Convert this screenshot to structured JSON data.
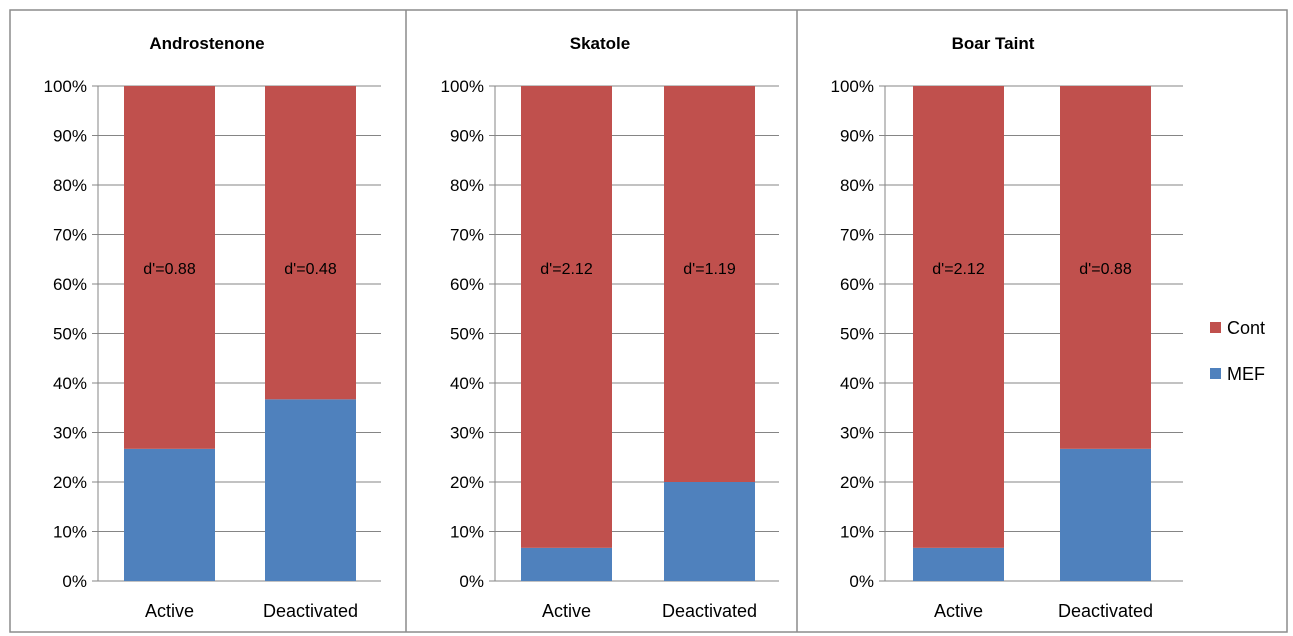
{
  "legend": [
    {
      "label": "Cont",
      "color": "#C0504D"
    },
    {
      "label": "MEF",
      "color": "#4F81BD"
    }
  ],
  "y_ticks": [
    "0%",
    "10%",
    "20%",
    "30%",
    "40%",
    "50%",
    "60%",
    "70%",
    "80%",
    "90%",
    "100%"
  ],
  "chart_data": [
    {
      "type": "bar",
      "stacked": "percent",
      "title": "Androstenone",
      "categories": [
        "Active",
        "Deactivated"
      ],
      "series": [
        {
          "name": "MEF",
          "values": [
            26.7,
            36.7
          ],
          "color": "#4F81BD"
        },
        {
          "name": "Cont",
          "values": [
            73.3,
            63.3
          ],
          "color": "#C0504D"
        }
      ],
      "annotations": [
        "d'=0.88",
        "d'=0.48"
      ],
      "ylim": [
        0,
        100
      ],
      "grid": true,
      "legend_position": "right"
    },
    {
      "type": "bar",
      "stacked": "percent",
      "title": "Skatole",
      "categories": [
        "Active",
        "Deactivated"
      ],
      "series": [
        {
          "name": "MEF",
          "values": [
            6.7,
            20.0
          ],
          "color": "#4F81BD"
        },
        {
          "name": "Cont",
          "values": [
            93.3,
            80.0
          ],
          "color": "#C0504D"
        }
      ],
      "annotations": [
        "d'=2.12",
        "d'=1.19"
      ],
      "ylim": [
        0,
        100
      ],
      "grid": true,
      "legend_position": "right"
    },
    {
      "type": "bar",
      "stacked": "percent",
      "title": "Boar Taint",
      "categories": [
        "Active",
        "Deactivated"
      ],
      "series": [
        {
          "name": "MEF",
          "values": [
            6.7,
            26.7
          ],
          "color": "#4F81BD"
        },
        {
          "name": "Cont",
          "values": [
            93.3,
            73.3
          ],
          "color": "#C0504D"
        }
      ],
      "annotations": [
        "d'=2.12",
        "d'=0.88"
      ],
      "ylim": [
        0,
        100
      ],
      "grid": true,
      "legend_position": "right"
    }
  ]
}
